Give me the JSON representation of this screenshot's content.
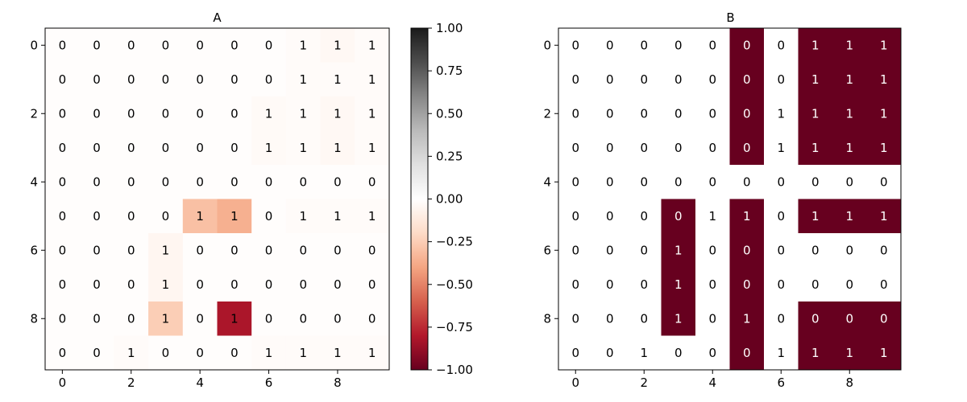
{
  "chart_data": [
    {
      "type": "heatmap",
      "title": "A",
      "x_ticks": [
        "0",
        "2",
        "4",
        "6",
        "8"
      ],
      "y_ticks": [
        "0",
        "2",
        "4",
        "6",
        "8"
      ],
      "colormap": "RdGy",
      "vmin": -1.0,
      "vmax": 1.0,
      "colorbar_ticks": [
        "1.00",
        "0.75",
        "0.50",
        "0.25",
        "0.00",
        "−0.25",
        "−0.50",
        "−0.75",
        "−1.00"
      ],
      "colorbar_values": [
        1.0,
        0.75,
        0.5,
        0.25,
        0.0,
        -0.25,
        -0.5,
        -0.75,
        -1.0
      ],
      "annotations": [
        [
          0,
          0,
          0,
          0,
          0,
          0,
          0,
          1,
          1,
          1
        ],
        [
          0,
          0,
          0,
          0,
          0,
          0,
          0,
          1,
          1,
          1
        ],
        [
          0,
          0,
          0,
          0,
          0,
          0,
          1,
          1,
          1,
          1
        ],
        [
          0,
          0,
          0,
          0,
          0,
          0,
          1,
          1,
          1,
          1
        ],
        [
          0,
          0,
          0,
          0,
          0,
          0,
          0,
          0,
          0,
          0
        ],
        [
          0,
          0,
          0,
          0,
          1,
          1,
          0,
          1,
          1,
          1
        ],
        [
          0,
          0,
          0,
          1,
          0,
          0,
          0,
          0,
          0,
          0
        ],
        [
          0,
          0,
          0,
          1,
          0,
          0,
          0,
          0,
          0,
          0
        ],
        [
          0,
          0,
          0,
          1,
          0,
          1,
          0,
          0,
          0,
          0
        ],
        [
          0,
          0,
          1,
          0,
          0,
          0,
          1,
          1,
          1,
          1
        ]
      ],
      "values": [
        [
          -0.01,
          -0.01,
          -0.01,
          -0.01,
          -0.01,
          -0.01,
          -0.01,
          -0.02,
          -0.04,
          -0.02
        ],
        [
          -0.01,
          -0.01,
          -0.01,
          -0.01,
          -0.01,
          -0.01,
          -0.01,
          -0.02,
          -0.02,
          -0.02
        ],
        [
          -0.01,
          -0.01,
          -0.01,
          -0.01,
          -0.01,
          -0.01,
          -0.03,
          -0.02,
          -0.04,
          -0.02
        ],
        [
          -0.01,
          -0.01,
          -0.01,
          -0.01,
          -0.01,
          -0.01,
          -0.03,
          -0.02,
          -0.04,
          -0.02
        ],
        [
          -0.01,
          -0.01,
          -0.01,
          -0.01,
          -0.01,
          -0.01,
          -0.01,
          -0.01,
          -0.01,
          -0.01
        ],
        [
          -0.01,
          -0.01,
          -0.01,
          -0.01,
          -0.3,
          -0.36,
          -0.01,
          -0.02,
          -0.02,
          -0.02
        ],
        [
          -0.01,
          -0.01,
          -0.01,
          -0.05,
          -0.01,
          -0.01,
          -0.01,
          -0.01,
          -0.01,
          -0.01
        ],
        [
          -0.01,
          -0.01,
          -0.01,
          -0.05,
          -0.01,
          -0.01,
          -0.01,
          -0.01,
          -0.01,
          -0.01
        ],
        [
          -0.01,
          -0.01,
          -0.01,
          -0.25,
          -0.01,
          -0.82,
          -0.01,
          -0.01,
          -0.01,
          -0.01
        ],
        [
          -0.01,
          -0.01,
          -0.02,
          -0.01,
          -0.01,
          -0.01,
          -0.02,
          -0.02,
          -0.02,
          -0.02
        ]
      ]
    },
    {
      "type": "heatmap",
      "title": "B",
      "x_ticks": [
        "0",
        "2",
        "4",
        "6",
        "8"
      ],
      "y_ticks": [
        "0",
        "2",
        "4",
        "6",
        "8"
      ],
      "colors": {
        "high": "#67001f",
        "low": "#ffffff"
      },
      "annotations": [
        [
          0,
          0,
          0,
          0,
          0,
          0,
          0,
          1,
          1,
          1
        ],
        [
          0,
          0,
          0,
          0,
          0,
          0,
          0,
          1,
          1,
          1
        ],
        [
          0,
          0,
          0,
          0,
          0,
          0,
          1,
          1,
          1,
          1
        ],
        [
          0,
          0,
          0,
          0,
          0,
          0,
          1,
          1,
          1,
          1
        ],
        [
          0,
          0,
          0,
          0,
          0,
          0,
          0,
          0,
          0,
          0
        ],
        [
          0,
          0,
          0,
          0,
          1,
          1,
          0,
          1,
          1,
          1
        ],
        [
          0,
          0,
          0,
          1,
          0,
          0,
          0,
          0,
          0,
          0
        ],
        [
          0,
          0,
          0,
          1,
          0,
          0,
          0,
          0,
          0,
          0
        ],
        [
          0,
          0,
          0,
          1,
          0,
          1,
          0,
          0,
          0,
          0
        ],
        [
          0,
          0,
          1,
          0,
          0,
          0,
          1,
          1,
          1,
          1
        ]
      ],
      "mask": [
        [
          0,
          0,
          0,
          0,
          0,
          1,
          0,
          1,
          1,
          1
        ],
        [
          0,
          0,
          0,
          0,
          0,
          1,
          0,
          1,
          1,
          1
        ],
        [
          0,
          0,
          0,
          0,
          0,
          1,
          0,
          1,
          1,
          1
        ],
        [
          0,
          0,
          0,
          0,
          0,
          1,
          0,
          1,
          1,
          1
        ],
        [
          0,
          0,
          0,
          0,
          0,
          0,
          0,
          0,
          0,
          0
        ],
        [
          0,
          0,
          0,
          1,
          0,
          1,
          0,
          1,
          1,
          1
        ],
        [
          0,
          0,
          0,
          1,
          0,
          1,
          0,
          0,
          0,
          0
        ],
        [
          0,
          0,
          0,
          1,
          0,
          1,
          0,
          0,
          0,
          0
        ],
        [
          0,
          0,
          0,
          1,
          0,
          1,
          0,
          1,
          1,
          1
        ],
        [
          0,
          0,
          0,
          0,
          0,
          1,
          0,
          1,
          1,
          1
        ]
      ]
    }
  ]
}
